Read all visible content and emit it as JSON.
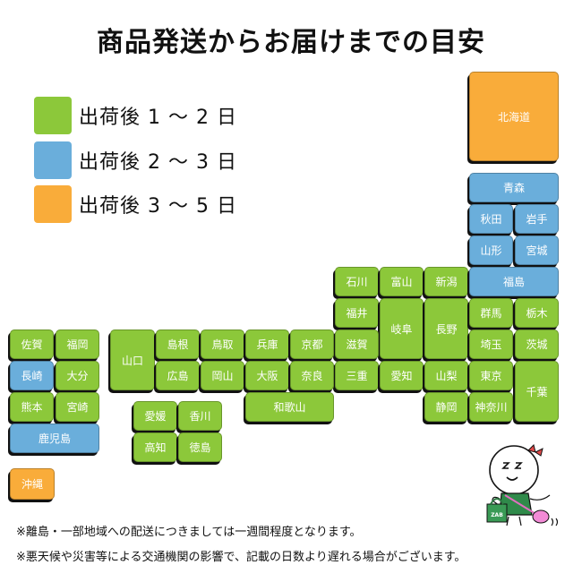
{
  "title": "商品発送からお届けまでの目安",
  "colors": {
    "tier1": "#8cc83a",
    "tier2": "#6aaedb",
    "tier3": "#f9ac3a"
  },
  "legend": [
    {
      "label": "出荷後 1 〜 2 日",
      "tier": 1
    },
    {
      "label": "出荷後 2 〜 3 日",
      "tier": 2
    },
    {
      "label": "出荷後 3 〜 5 日",
      "tier": 3
    }
  ],
  "prefectures": [
    {
      "name": "北海道",
      "tier": 3
    },
    {
      "name": "青森",
      "tier": 2
    },
    {
      "name": "秋田",
      "tier": 2
    },
    {
      "name": "岩手",
      "tier": 2
    },
    {
      "name": "山形",
      "tier": 2
    },
    {
      "name": "宮城",
      "tier": 2
    },
    {
      "name": "石川",
      "tier": 1
    },
    {
      "name": "富山",
      "tier": 1
    },
    {
      "name": "新潟",
      "tier": 1
    },
    {
      "name": "福島",
      "tier": 2
    },
    {
      "name": "福井",
      "tier": 1
    },
    {
      "name": "岐阜",
      "tier": 1
    },
    {
      "name": "長野",
      "tier": 1
    },
    {
      "name": "群馬",
      "tier": 1
    },
    {
      "name": "栃木",
      "tier": 1
    },
    {
      "name": "滋賀",
      "tier": 1
    },
    {
      "name": "埼玉",
      "tier": 1
    },
    {
      "name": "茨城",
      "tier": 1
    },
    {
      "name": "三重",
      "tier": 1
    },
    {
      "name": "愛知",
      "tier": 1
    },
    {
      "name": "山梨",
      "tier": 1
    },
    {
      "name": "東京",
      "tier": 1
    },
    {
      "name": "千葉",
      "tier": 1
    },
    {
      "name": "静岡",
      "tier": 1
    },
    {
      "name": "神奈川",
      "tier": 1
    },
    {
      "name": "山口",
      "tier": 1
    },
    {
      "name": "島根",
      "tier": 1
    },
    {
      "name": "鳥取",
      "tier": 1
    },
    {
      "name": "兵庫",
      "tier": 1
    },
    {
      "name": "京都",
      "tier": 1
    },
    {
      "name": "広島",
      "tier": 1
    },
    {
      "name": "岡山",
      "tier": 1
    },
    {
      "name": "大阪",
      "tier": 1
    },
    {
      "name": "奈良",
      "tier": 1
    },
    {
      "name": "和歌山",
      "tier": 1
    },
    {
      "name": "愛媛",
      "tier": 1
    },
    {
      "name": "香川",
      "tier": 1
    },
    {
      "name": "高知",
      "tier": 1
    },
    {
      "name": "徳島",
      "tier": 1
    },
    {
      "name": "佐賀",
      "tier": 1
    },
    {
      "name": "福岡",
      "tier": 1
    },
    {
      "name": "長崎",
      "tier": 2
    },
    {
      "name": "大分",
      "tier": 1
    },
    {
      "name": "熊本",
      "tier": 1
    },
    {
      "name": "宮崎",
      "tier": 1
    },
    {
      "name": "鹿児島",
      "tier": 2
    },
    {
      "name": "沖縄",
      "tier": 3
    }
  ],
  "notes": [
    "※離島・一部地域への配送につきましては一週間程度となります。",
    "※悪天候や災害等による交通機関の影響で、記載の日数より遅れる場合がございます。"
  ],
  "mascot": {
    "icon": "sleeping-mascot-with-shopping-bag",
    "bag_text": "ZAB"
  }
}
